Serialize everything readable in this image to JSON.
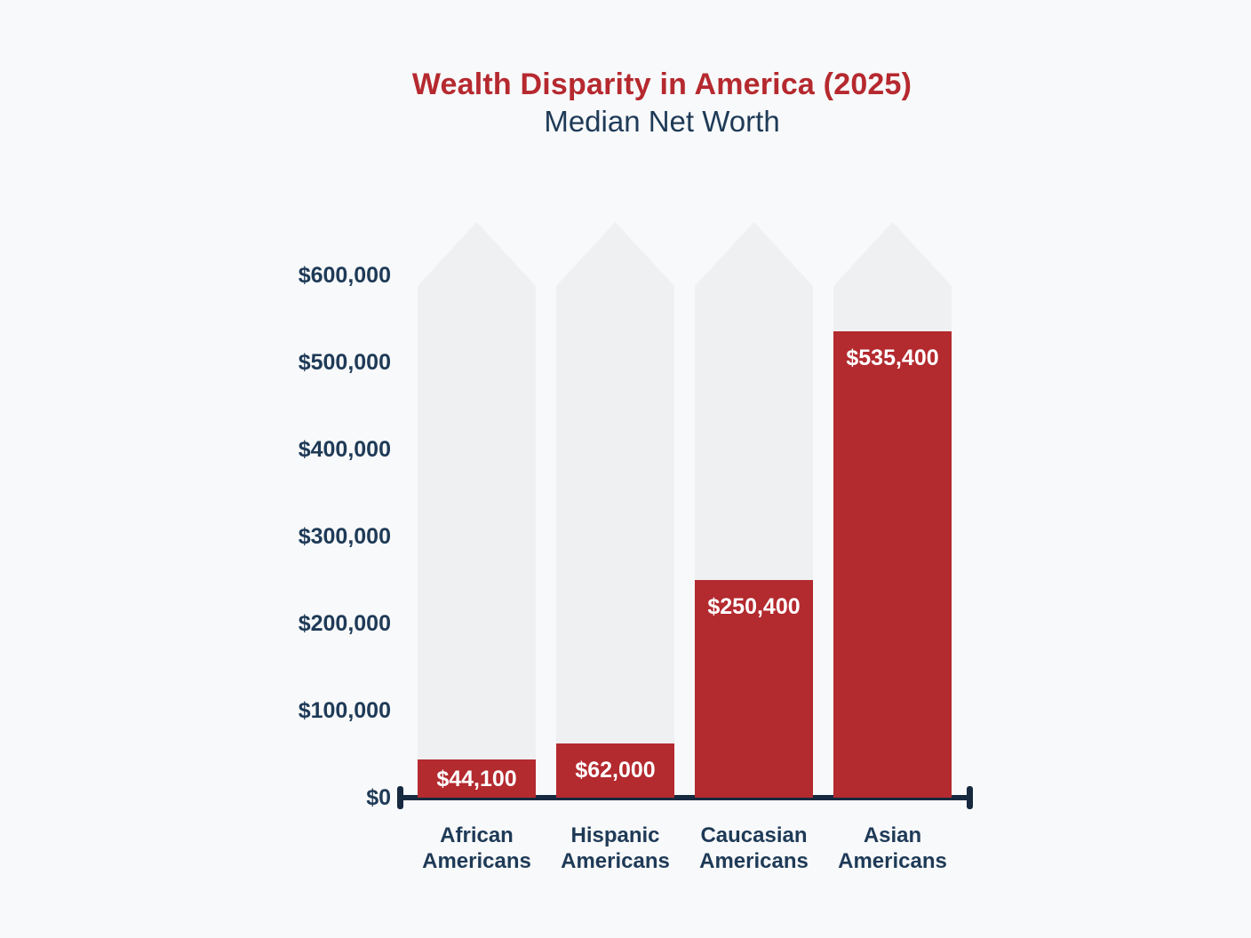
{
  "header": {
    "title": "Wealth Disparity in America (2025)",
    "subtitle": "Median Net Worth"
  },
  "chart_data": {
    "type": "bar",
    "title": "Wealth Disparity in America (2025)",
    "subtitle": "Median Net Worth",
    "categories": [
      "African Americans",
      "Hispanic Americans",
      "Caucasian Americans",
      "Asian Americans"
    ],
    "values": [
      44100,
      62000,
      250400,
      535400
    ],
    "value_labels": [
      "$44,100",
      "$62,000",
      "$250,400",
      "$535,400"
    ],
    "y_ticks": [
      "$0",
      "$100,000",
      "$200,000",
      "$300,000",
      "$400,000",
      "$500,000",
      "$600,000"
    ],
    "ylim": [
      0,
      600000
    ],
    "ylabel": "",
    "xlabel": "",
    "grid": false,
    "legend": false,
    "colors": {
      "bar": "#B32A2F",
      "track": "#EFF0F2",
      "title": "#B5292F",
      "text": "#1E3A57",
      "axis": "#16293F",
      "background": "#F8F9FA",
      "value_label_text": "#FFFFFF"
    }
  }
}
